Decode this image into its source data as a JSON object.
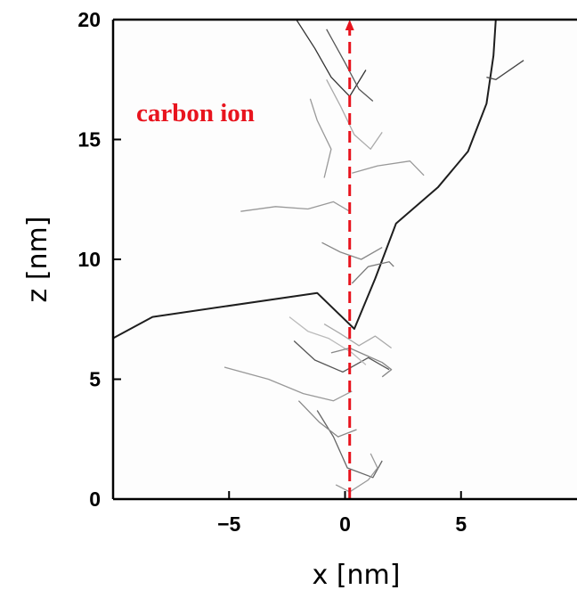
{
  "chart_data": {
    "type": "line",
    "title": "",
    "xlabel": "x  [nm]",
    "ylabel": "z  [nm]",
    "xlim": [
      -10,
      10
    ],
    "ylim": [
      0,
      20
    ],
    "x_ticks": [
      -5,
      0,
      5
    ],
    "x_tick_labels": [
      "−5",
      "0",
      "5"
    ],
    "y_ticks": [
      0,
      5,
      10,
      15,
      20
    ],
    "y_tick_labels": [
      "0",
      "5",
      "10",
      "15",
      "20"
    ],
    "grid": false,
    "annotation": {
      "text": "carbon ion",
      "color": "#e8141e"
    },
    "ion_path": {
      "x": [
        0.2,
        0.2
      ],
      "y": [
        0,
        20
      ],
      "style": "dashed",
      "color": "#e8141e"
    },
    "series": [
      {
        "color": "#1e1e1e",
        "x": [
          -10.4,
          -8.3,
          -1.2,
          0.4,
          1.3,
          2.2,
          4.0,
          5.3,
          6.1,
          6.4,
          6.5
        ],
        "y": [
          6.5,
          7.6,
          8.6,
          7.1,
          9.2,
          11.5,
          13.0,
          14.5,
          16.5,
          18.5,
          20.0
        ]
      },
      {
        "color": "#444444",
        "x": [
          6.1,
          6.5,
          7.7
        ],
        "y": [
          17.6,
          17.5,
          18.3
        ]
      },
      {
        "color": "#999999",
        "x": [
          -4.5,
          -3.0,
          -1.6,
          -0.5,
          0.2
        ],
        "y": [
          12.0,
          12.2,
          12.1,
          12.4,
          12.0
        ]
      },
      {
        "color": "#999999",
        "x": [
          0.3,
          1.4,
          2.8,
          3.4
        ],
        "y": [
          13.6,
          13.9,
          14.1,
          13.5
        ]
      },
      {
        "color": "#aaaaaa",
        "x": [
          -0.8,
          -0.2,
          0.4,
          1.1,
          1.6
        ],
        "y": [
          17.5,
          16.4,
          15.2,
          14.6,
          15.3
        ]
      },
      {
        "color": "#999999",
        "x": [
          -5.2,
          -3.3,
          -1.8,
          -0.5,
          0.3
        ],
        "y": [
          5.5,
          5.0,
          4.4,
          4.1,
          4.5
        ]
      },
      {
        "color": "#555555",
        "x": [
          -2.2,
          -1.3,
          -0.1,
          1.0,
          1.9
        ],
        "y": [
          6.6,
          5.8,
          5.3,
          5.9,
          5.4
        ]
      },
      {
        "color": "#666666",
        "x": [
          -1.2,
          -0.5,
          0.1,
          1.2,
          1.6
        ],
        "y": [
          3.7,
          2.6,
          1.3,
          0.9,
          1.6
        ]
      },
      {
        "color": "#777777",
        "x": [
          0.3,
          1.0,
          1.9,
          2.1
        ],
        "y": [
          9.0,
          9.7,
          9.9,
          9.7
        ]
      },
      {
        "color": "#888888",
        "x": [
          -2.0,
          -1.1,
          -0.3,
          0.5
        ],
        "y": [
          4.1,
          3.2,
          2.6,
          2.9
        ]
      },
      {
        "color": "#999999",
        "x": [
          -0.4,
          0.2,
          1.0,
          1.4,
          1.1
        ],
        "y": [
          0.6,
          0.3,
          0.8,
          1.3,
          1.9
        ]
      },
      {
        "color": "#aaaaaa",
        "x": [
          -0.9,
          -0.2,
          0.6,
          1.3,
          2.0
        ],
        "y": [
          7.3,
          6.9,
          6.4,
          6.8,
          6.3
        ]
      },
      {
        "color": "#333333",
        "x": [
          -2.1,
          -1.3,
          -0.6,
          0.2,
          0.9
        ],
        "y": [
          20.0,
          18.8,
          17.6,
          16.8,
          17.9
        ]
      },
      {
        "color": "#555555",
        "x": [
          -0.8,
          0.0,
          0.6,
          1.2
        ],
        "y": [
          19.6,
          18.2,
          17.1,
          16.6
        ]
      },
      {
        "color": "#999999",
        "x": [
          -1.5,
          -1.2,
          -0.6,
          -0.9
        ],
        "y": [
          16.7,
          15.8,
          14.6,
          13.4
        ]
      },
      {
        "color": "#888888",
        "x": [
          -1.0,
          -0.2,
          0.7,
          1.6
        ],
        "y": [
          10.7,
          10.3,
          10.0,
          10.5
        ]
      },
      {
        "color": "#bbbbbb",
        "x": [
          -2.4,
          -1.6,
          -0.7,
          0.3,
          0.9
        ],
        "y": [
          7.6,
          7.0,
          6.7,
          6.1,
          5.6
        ]
      },
      {
        "color": "#888888",
        "x": [
          -0.6,
          0.2,
          0.9,
          1.6,
          2.0,
          1.6
        ],
        "y": [
          6.1,
          6.3,
          6.0,
          5.7,
          5.4,
          5.1
        ]
      }
    ]
  }
}
